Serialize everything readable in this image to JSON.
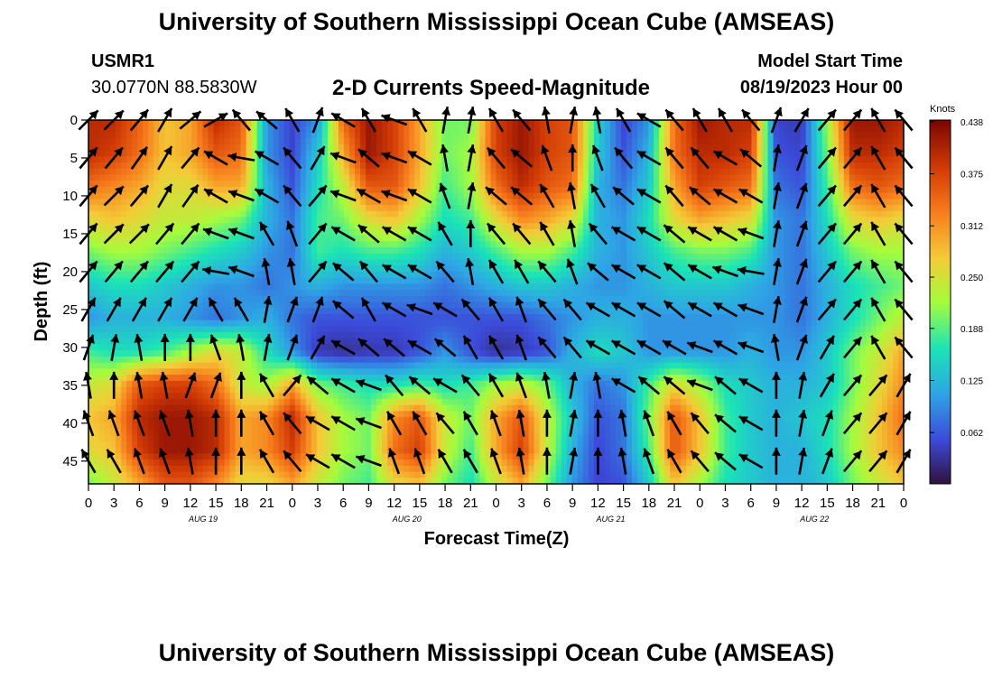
{
  "header": {
    "title": "University of Southern Mississippi Ocean Cube (AMSEAS)",
    "station": "USMR1",
    "location": "30.0770N  88.5830W",
    "subtitle": "2-D Currents Speed-Magnitude",
    "model_start_label": "Model Start Time",
    "model_start_value": "08/19/2023 Hour 00"
  },
  "footer": {
    "title": "University of Southern Mississippi Ocean Cube (AMSEAS)"
  },
  "chart_data": {
    "type": "heatmap",
    "xlabel": "Forecast Time(Z)",
    "ylabel": "Depth (ft)",
    "x_tick_labels": [
      "0",
      "3",
      "6",
      "9",
      "12",
      "15",
      "18",
      "21",
      "0",
      "3",
      "6",
      "9",
      "12",
      "15",
      "18",
      "21",
      "0",
      "3",
      "6",
      "9",
      "12",
      "15",
      "18",
      "21",
      "0",
      "3",
      "6",
      "9",
      "12",
      "15",
      "18",
      "21",
      "0"
    ],
    "day_labels": [
      "AUG 19",
      "AUG 20",
      "AUG 21",
      "AUG 22"
    ],
    "y_ticks": [
      0,
      5,
      10,
      15,
      20,
      25,
      30,
      35,
      40,
      45
    ],
    "ylim": [
      0,
      48
    ],
    "xlim_hours": [
      0,
      96
    ],
    "colorbar": {
      "label": "Knots",
      "ticks": [
        "0.438",
        "0.375",
        "0.312",
        "0.250",
        "0.188",
        "0.125",
        "0.062"
      ],
      "range": [
        0.0,
        0.44
      ]
    },
    "colormap": [
      "#30123b",
      "#3c4ad9",
      "#2ea6e5",
      "#1ae4b6",
      "#a5fc3c",
      "#f4cb37",
      "#f77a1c",
      "#d13a05",
      "#7a0403"
    ],
    "speed_knots": [
      [
        0.4,
        0.4,
        0.35,
        0.28,
        0.3,
        0.4,
        0.36,
        0.1,
        0.05,
        0.1,
        0.35,
        0.42,
        0.38,
        0.3,
        0.2,
        0.2,
        0.38,
        0.42,
        0.38,
        0.36,
        0.15,
        0.05,
        0.1,
        0.34,
        0.42,
        0.4,
        0.4,
        0.05,
        0.04,
        0.22,
        0.42,
        0.42,
        0.4
      ],
      [
        0.4,
        0.38,
        0.34,
        0.28,
        0.3,
        0.36,
        0.34,
        0.1,
        0.05,
        0.14,
        0.3,
        0.42,
        0.38,
        0.3,
        0.2,
        0.22,
        0.38,
        0.42,
        0.38,
        0.36,
        0.14,
        0.06,
        0.12,
        0.34,
        0.4,
        0.4,
        0.38,
        0.06,
        0.05,
        0.2,
        0.4,
        0.4,
        0.38
      ],
      [
        0.34,
        0.32,
        0.3,
        0.26,
        0.26,
        0.3,
        0.3,
        0.12,
        0.06,
        0.16,
        0.24,
        0.36,
        0.36,
        0.28,
        0.18,
        0.22,
        0.34,
        0.4,
        0.36,
        0.34,
        0.12,
        0.08,
        0.14,
        0.3,
        0.38,
        0.36,
        0.34,
        0.08,
        0.06,
        0.18,
        0.34,
        0.36,
        0.34
      ],
      [
        0.26,
        0.28,
        0.26,
        0.24,
        0.24,
        0.22,
        0.2,
        0.12,
        0.08,
        0.18,
        0.2,
        0.26,
        0.28,
        0.22,
        0.16,
        0.18,
        0.26,
        0.32,
        0.3,
        0.26,
        0.12,
        0.1,
        0.16,
        0.26,
        0.3,
        0.28,
        0.26,
        0.1,
        0.08,
        0.16,
        0.26,
        0.28,
        0.26
      ],
      [
        0.2,
        0.22,
        0.22,
        0.2,
        0.18,
        0.16,
        0.14,
        0.1,
        0.08,
        0.18,
        0.16,
        0.18,
        0.18,
        0.16,
        0.12,
        0.14,
        0.18,
        0.22,
        0.22,
        0.18,
        0.12,
        0.1,
        0.14,
        0.18,
        0.2,
        0.2,
        0.18,
        0.1,
        0.08,
        0.14,
        0.2,
        0.22,
        0.22
      ],
      [
        0.14,
        0.16,
        0.16,
        0.14,
        0.12,
        0.1,
        0.1,
        0.08,
        0.1,
        0.12,
        0.1,
        0.1,
        0.1,
        0.1,
        0.08,
        0.1,
        0.12,
        0.14,
        0.14,
        0.12,
        0.1,
        0.1,
        0.12,
        0.14,
        0.14,
        0.14,
        0.12,
        0.1,
        0.08,
        0.12,
        0.16,
        0.18,
        0.2
      ],
      [
        0.1,
        0.12,
        0.12,
        0.12,
        0.1,
        0.08,
        0.1,
        0.12,
        0.08,
        0.06,
        0.06,
        0.06,
        0.06,
        0.06,
        0.06,
        0.06,
        0.06,
        0.06,
        0.08,
        0.1,
        0.12,
        0.12,
        0.1,
        0.1,
        0.1,
        0.1,
        0.1,
        0.1,
        0.08,
        0.12,
        0.16,
        0.2,
        0.24
      ],
      [
        0.18,
        0.16,
        0.16,
        0.18,
        0.22,
        0.26,
        0.24,
        0.16,
        0.1,
        0.04,
        0.03,
        0.04,
        0.04,
        0.06,
        0.1,
        0.06,
        0.03,
        0.04,
        0.06,
        0.12,
        0.16,
        0.14,
        0.1,
        0.1,
        0.1,
        0.1,
        0.12,
        0.1,
        0.1,
        0.14,
        0.2,
        0.24,
        0.3
      ],
      [
        0.24,
        0.26,
        0.36,
        0.38,
        0.38,
        0.34,
        0.24,
        0.22,
        0.3,
        0.2,
        0.18,
        0.16,
        0.16,
        0.18,
        0.16,
        0.18,
        0.22,
        0.24,
        0.2,
        0.12,
        0.08,
        0.1,
        0.18,
        0.26,
        0.22,
        0.16,
        0.14,
        0.12,
        0.12,
        0.14,
        0.2,
        0.26,
        0.32
      ],
      [
        0.28,
        0.3,
        0.4,
        0.42,
        0.42,
        0.4,
        0.3,
        0.32,
        0.4,
        0.28,
        0.22,
        0.2,
        0.32,
        0.36,
        0.24,
        0.2,
        0.3,
        0.36,
        0.24,
        0.14,
        0.06,
        0.08,
        0.2,
        0.36,
        0.28,
        0.18,
        0.14,
        0.12,
        0.14,
        0.16,
        0.22,
        0.28,
        0.34
      ],
      [
        0.26,
        0.28,
        0.38,
        0.42,
        0.42,
        0.4,
        0.3,
        0.32,
        0.38,
        0.28,
        0.22,
        0.2,
        0.34,
        0.38,
        0.24,
        0.18,
        0.3,
        0.38,
        0.24,
        0.12,
        0.05,
        0.08,
        0.18,
        0.36,
        0.28,
        0.18,
        0.14,
        0.12,
        0.12,
        0.16,
        0.22,
        0.28,
        0.32
      ],
      [
        0.2,
        0.24,
        0.3,
        0.36,
        0.36,
        0.32,
        0.26,
        0.26,
        0.3,
        0.24,
        0.2,
        0.18,
        0.26,
        0.28,
        0.2,
        0.16,
        0.24,
        0.3,
        0.2,
        0.1,
        0.05,
        0.06,
        0.14,
        0.28,
        0.22,
        0.16,
        0.14,
        0.12,
        0.12,
        0.14,
        0.2,
        0.24,
        0.28
      ]
    ],
    "vector_grid_hours_step": 3,
    "vector_depths_ft": [
      0,
      5,
      10,
      15,
      20,
      25,
      30,
      35,
      40,
      45
    ],
    "vector_direction_deg": [
      [
        45,
        45,
        40,
        30,
        50,
        60,
        320,
        310,
        330,
        20,
        300,
        330,
        290,
        330,
        10,
        10,
        330,
        320,
        350,
        10,
        350,
        330,
        300,
        320,
        330,
        330,
        320,
        20,
        30,
        40,
        40,
        330,
        320
      ],
      [
        40,
        40,
        35,
        30,
        40,
        300,
        280,
        300,
        320,
        30,
        290,
        310,
        290,
        300,
        350,
        10,
        320,
        310,
        340,
        0,
        340,
        320,
        300,
        320,
        320,
        300,
        310,
        10,
        20,
        40,
        40,
        330,
        320
      ],
      [
        40,
        45,
        40,
        30,
        35,
        300,
        290,
        300,
        320,
        40,
        290,
        300,
        290,
        300,
        340,
        10,
        310,
        310,
        330,
        350,
        330,
        310,
        300,
        320,
        310,
        300,
        300,
        10,
        20,
        40,
        40,
        330,
        320
      ],
      [
        40,
        45,
        45,
        40,
        40,
        290,
        290,
        330,
        340,
        40,
        300,
        310,
        300,
        300,
        330,
        0,
        320,
        320,
        330,
        350,
        320,
        300,
        300,
        310,
        300,
        300,
        290,
        10,
        20,
        40,
        40,
        330,
        320
      ],
      [
        40,
        40,
        40,
        40,
        40,
        280,
        290,
        350,
        350,
        40,
        310,
        320,
        300,
        300,
        320,
        350,
        330,
        330,
        320,
        340,
        310,
        300,
        300,
        310,
        300,
        290,
        280,
        10,
        20,
        40,
        40,
        330,
        320
      ],
      [
        30,
        30,
        30,
        30,
        30,
        330,
        330,
        10,
        20,
        20,
        310,
        330,
        300,
        290,
        300,
        320,
        330,
        340,
        320,
        320,
        300,
        300,
        300,
        310,
        300,
        300,
        290,
        10,
        20,
        40,
        40,
        330,
        320
      ],
      [
        20,
        10,
        350,
        0,
        0,
        340,
        350,
        10,
        20,
        30,
        300,
        310,
        310,
        300,
        310,
        330,
        330,
        340,
        320,
        320,
        300,
        300,
        300,
        300,
        290,
        300,
        290,
        350,
        20,
        30,
        40,
        330,
        320
      ],
      [
        350,
        0,
        350,
        350,
        20,
        20,
        0,
        330,
        40,
        310,
        300,
        290,
        320,
        310,
        300,
        320,
        330,
        340,
        350,
        10,
        350,
        300,
        310,
        310,
        290,
        310,
        300,
        0,
        10,
        30,
        40,
        40,
        30
      ],
      [
        340,
        340,
        340,
        340,
        350,
        0,
        0,
        330,
        320,
        300,
        300,
        290,
        330,
        330,
        320,
        330,
        340,
        350,
        0,
        10,
        0,
        350,
        340,
        330,
        320,
        310,
        300,
        0,
        10,
        20,
        40,
        40,
        30
      ],
      [
        330,
        330,
        340,
        340,
        350,
        0,
        0,
        330,
        320,
        300,
        300,
        290,
        340,
        340,
        330,
        330,
        340,
        350,
        0,
        10,
        0,
        350,
        340,
        330,
        320,
        310,
        300,
        0,
        10,
        20,
        40,
        40,
        30
      ]
    ],
    "vector_strength": [
      [
        1,
        1,
        1,
        1,
        1,
        1,
        1,
        1,
        1,
        1,
        1,
        1,
        1,
        1,
        1,
        1,
        1,
        1,
        1,
        1,
        1,
        1,
        1,
        1,
        1,
        1,
        1,
        1,
        1,
        1,
        1,
        1,
        1
      ],
      [
        1,
        1,
        1,
        1,
        1,
        1,
        1,
        1,
        1,
        1,
        1,
        1,
        1,
        1,
        1,
        1,
        1,
        1,
        1,
        1,
        1,
        1,
        1,
        1,
        1,
        1,
        1,
        1,
        1,
        1,
        1,
        1,
        1
      ],
      [
        1,
        1,
        1,
        1,
        1,
        1,
        1,
        1,
        1,
        1,
        1,
        1,
        1,
        1,
        1,
        1,
        1,
        1,
        1,
        1,
        1,
        1,
        1,
        1,
        1,
        1,
        1,
        1,
        1,
        1,
        1,
        1,
        1
      ],
      [
        1,
        1,
        1,
        1,
        1,
        1,
        1,
        1,
        1,
        1,
        1,
        1,
        1,
        1,
        1,
        1,
        1,
        1,
        1,
        1,
        1,
        1,
        1,
        1,
        1,
        1,
        1,
        1,
        1,
        1,
        1,
        1,
        1
      ],
      [
        1,
        1,
        1,
        1,
        1,
        1,
        1,
        1,
        1,
        1,
        1,
        1,
        1,
        1,
        1,
        1,
        1,
        1,
        1,
        1,
        1,
        1,
        1,
        1,
        1,
        1,
        1,
        1,
        1,
        1,
        1,
        1,
        1
      ],
      [
        1,
        1,
        1,
        1,
        1,
        1,
        1,
        1,
        1,
        1,
        1,
        1,
        1,
        1,
        1,
        1,
        1,
        1,
        1,
        1,
        1,
        1,
        1,
        1,
        1,
        1,
        1,
        1,
        1,
        1,
        1,
        1,
        1
      ],
      [
        1,
        1,
        1,
        1,
        1,
        1,
        1,
        1,
        1,
        1,
        1,
        1,
        1,
        1,
        1,
        1,
        1,
        1,
        1,
        1,
        1,
        1,
        1,
        1,
        1,
        1,
        1,
        1,
        1,
        1,
        1,
        1,
        1
      ],
      [
        1,
        1,
        1,
        1,
        1,
        1,
        1,
        1,
        1,
        1,
        1,
        1,
        1,
        1,
        1,
        1,
        1,
        1,
        1,
        1,
        1,
        1,
        1,
        1,
        1,
        1,
        1,
        1,
        1,
        1,
        1,
        1,
        1
      ],
      [
        1,
        1,
        1,
        1,
        1,
        1,
        1,
        1,
        1,
        1,
        1,
        1,
        1,
        1,
        1,
        1,
        1,
        1,
        1,
        1,
        1,
        1,
        1,
        1,
        1,
        1,
        1,
        1,
        1,
        1,
        1,
        1,
        1
      ],
      [
        1,
        1,
        1,
        1,
        1,
        1,
        1,
        1,
        1,
        1,
        1,
        1,
        1,
        1,
        1,
        1,
        1,
        1,
        1,
        1,
        1,
        1,
        1,
        1,
        1,
        1,
        1,
        1,
        1,
        1,
        1,
        1,
        1
      ]
    ]
  }
}
